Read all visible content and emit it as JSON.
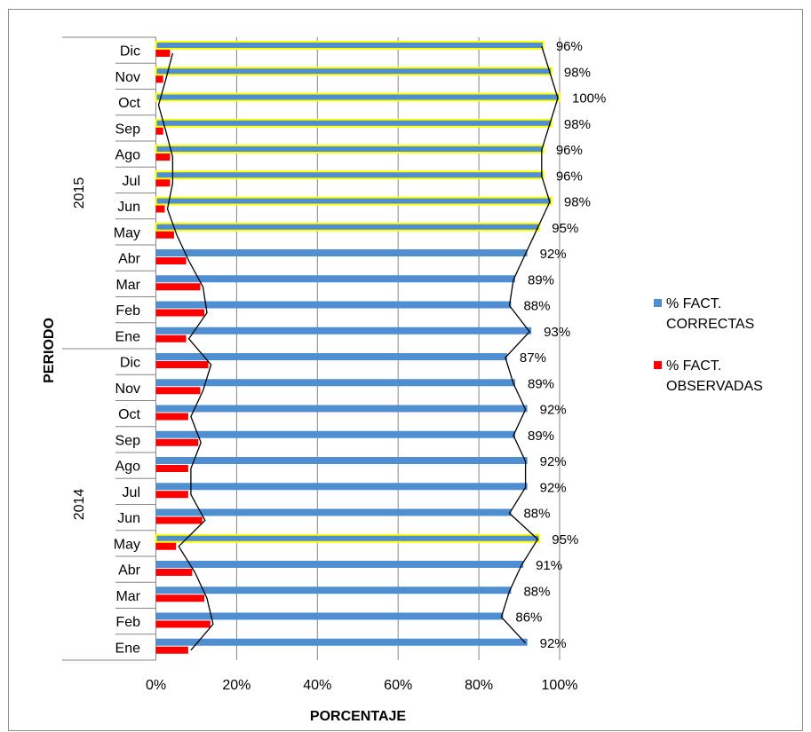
{
  "chart_data": {
    "type": "bar",
    "orientation": "horizontal",
    "ylabel": "PERIODO",
    "xlabel": "PORCENTAJE",
    "x_ticks": [
      "0%",
      "20%",
      "40%",
      "60%",
      "80%",
      "100%"
    ],
    "xlim": [
      0,
      100
    ],
    "grid": true,
    "legend_position": "right",
    "groups": [
      {
        "label": "2015",
        "months": [
          "Dic",
          "Nov",
          "Oct",
          "Sep",
          "Ago",
          "Jul",
          "Jun",
          "May",
          "Abr",
          "Mar",
          "Feb",
          "Ene"
        ]
      },
      {
        "label": "2014",
        "months": [
          "Dic",
          "Nov",
          "Oct",
          "Sep",
          "Ago",
          "Jul",
          "Jun",
          "May",
          "Abr",
          "Mar",
          "Feb",
          "Ene"
        ]
      }
    ],
    "series": [
      {
        "name": "% FACT. CORRECTAS",
        "color": "#4f8fd1",
        "values": [
          96,
          98,
          100,
          98,
          96,
          96,
          98,
          95,
          92,
          89,
          88,
          93,
          87,
          89,
          92,
          89,
          92,
          92,
          88,
          95,
          91,
          88,
          86,
          92
        ],
        "data_labels": [
          "96%",
          "98%",
          "100%",
          "98%",
          "96%",
          "96%",
          "98%",
          "95%",
          "92%",
          "89%",
          "88%",
          "93%",
          "87%",
          "89%",
          "92%",
          "89%",
          "92%",
          "92%",
          "88%",
          "95%",
          "91%",
          "88%",
          "86%",
          "92%"
        ],
        "highlighted": [
          true,
          true,
          true,
          true,
          true,
          true,
          true,
          true,
          false,
          false,
          false,
          false,
          false,
          false,
          false,
          false,
          false,
          false,
          false,
          true,
          false,
          false,
          false,
          false
        ]
      },
      {
        "name": "% FACT. OBSERVADAS",
        "color": "#ff0000",
        "values": [
          3.5,
          1.8,
          0,
          1.8,
          3.5,
          3.5,
          2.2,
          4.5,
          7.5,
          11,
          12,
          7.5,
          13,
          11,
          8,
          10.5,
          8,
          8,
          11.5,
          5,
          9,
          12,
          13.5,
          8
        ]
      }
    ]
  }
}
